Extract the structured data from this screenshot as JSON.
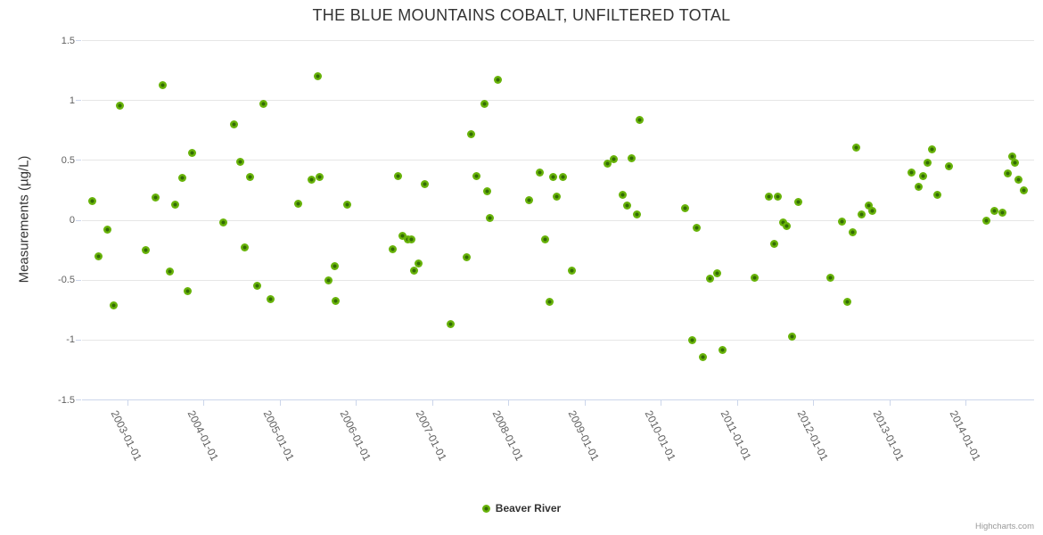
{
  "title": "THE BLUE MOUNTAINS COBALT, UNFILTERED TOTAL",
  "y_axis": {
    "title": "Measurements (µg/L)",
    "tick_labels": [
      "1.5",
      "1",
      "0.5",
      "0",
      "-0.5",
      "-1",
      "-1.5"
    ],
    "tick_values": [
      1.5,
      1,
      0.5,
      0,
      -0.5,
      -1,
      -1.5
    ]
  },
  "x_axis": {
    "tick_labels": [
      "2003-01-01",
      "2004-01-01",
      "2005-01-01",
      "2006-01-01",
      "2007-01-01",
      "2008-01-01",
      "2009-01-01",
      "2010-01-01",
      "2011-01-01",
      "2012-01-01",
      "2013-01-01",
      "2014-01-01"
    ],
    "tick_values": [
      2003,
      2004,
      2005,
      2006,
      2007,
      2008,
      2009,
      2010,
      2011,
      2012,
      2013,
      2014
    ]
  },
  "legend": {
    "series_label": "Beaver River"
  },
  "credits": {
    "label": "Highcharts.com"
  },
  "colors": {
    "point_outer": "#68b30a",
    "point_center": "#336b04",
    "grid": "#e6e6e6",
    "axis": "#ccd6eb",
    "label": "#606060",
    "title": "#333333"
  },
  "chart_data": {
    "type": "scatter",
    "title": "THE BLUE MOUNTAINS COBALT, UNFILTERED TOTAL",
    "xlabel": "",
    "ylabel": "Measurements (µg/L)",
    "xlim": [
      2002.4,
      2014.89
    ],
    "ylim": [
      -1.5,
      1.5
    ],
    "x_ticks": [
      2003,
      2004,
      2005,
      2006,
      2007,
      2008,
      2009,
      2010,
      2011,
      2012,
      2013,
      2014
    ],
    "x_tick_labels": [
      "2003-01-01",
      "2004-01-01",
      "2005-01-01",
      "2006-01-01",
      "2007-01-01",
      "2008-01-01",
      "2009-01-01",
      "2010-01-01",
      "2011-01-01",
      "2012-01-01",
      "2013-01-01",
      "2014-01-01"
    ],
    "y_ticks": [
      1.5,
      1,
      0.5,
      0,
      -0.5,
      -1,
      -1.5
    ],
    "grid": "horizontal",
    "legend_position": "bottom-center",
    "series": [
      {
        "name": "Beaver River",
        "color": "#68b30a",
        "data": [
          [
            2002.54,
            0.16
          ],
          [
            2002.62,
            -0.3
          ],
          [
            2002.73,
            -0.08
          ],
          [
            2002.82,
            -0.71
          ],
          [
            2002.9,
            0.96
          ],
          [
            2003.24,
            -0.25
          ],
          [
            2003.37,
            0.19
          ],
          [
            2003.46,
            1.13
          ],
          [
            2003.55,
            -0.43
          ],
          [
            2003.62,
            0.13
          ],
          [
            2003.72,
            0.35
          ],
          [
            2003.79,
            -0.59
          ],
          [
            2003.84,
            0.56
          ],
          [
            2004.25,
            -0.02
          ],
          [
            2004.39,
            0.8
          ],
          [
            2004.48,
            0.49
          ],
          [
            2004.54,
            -0.23
          ],
          [
            2004.61,
            0.36
          ],
          [
            2004.7,
            -0.55
          ],
          [
            2004.78,
            0.97
          ],
          [
            2004.87,
            -0.66
          ],
          [
            2005.24,
            0.14
          ],
          [
            2005.41,
            0.34
          ],
          [
            2005.49,
            1.2
          ],
          [
            2005.52,
            0.36
          ],
          [
            2005.63,
            -0.5
          ],
          [
            2005.72,
            -0.38
          ],
          [
            2005.73,
            -0.67
          ],
          [
            2005.88,
            0.13
          ],
          [
            2006.47,
            -0.24
          ],
          [
            2006.54,
            0.37
          ],
          [
            2006.6,
            -0.13
          ],
          [
            2006.67,
            -0.16
          ],
          [
            2006.72,
            -0.16
          ],
          [
            2006.76,
            -0.42
          ],
          [
            2006.82,
            -0.36
          ],
          [
            2006.9,
            0.3
          ],
          [
            2007.23,
            -0.87
          ],
          [
            2007.45,
            -0.31
          ],
          [
            2007.51,
            0.72
          ],
          [
            2007.57,
            0.37
          ],
          [
            2007.68,
            0.97
          ],
          [
            2007.71,
            0.24
          ],
          [
            2007.75,
            0.02
          ],
          [
            2007.86,
            1.17
          ],
          [
            2008.26,
            0.17
          ],
          [
            2008.4,
            0.4
          ],
          [
            2008.47,
            -0.16
          ],
          [
            2008.53,
            -0.68
          ],
          [
            2008.58,
            0.36
          ],
          [
            2008.63,
            0.2
          ],
          [
            2008.71,
            0.36
          ],
          [
            2008.83,
            -0.42
          ],
          [
            2009.29,
            0.47
          ],
          [
            2009.38,
            0.51
          ],
          [
            2009.49,
            0.21
          ],
          [
            2009.55,
            0.12
          ],
          [
            2009.61,
            0.52
          ],
          [
            2009.68,
            0.05
          ],
          [
            2009.71,
            0.84
          ],
          [
            2010.31,
            0.1
          ],
          [
            2010.41,
            -1.0
          ],
          [
            2010.46,
            -0.06
          ],
          [
            2010.55,
            -1.14
          ],
          [
            2010.64,
            -0.49
          ],
          [
            2010.73,
            -0.44
          ],
          [
            2010.8,
            -1.08
          ],
          [
            2011.22,
            -0.48
          ],
          [
            2011.41,
            0.2
          ],
          [
            2011.48,
            -0.2
          ],
          [
            2011.53,
            0.2
          ],
          [
            2011.6,
            -0.02
          ],
          [
            2011.65,
            -0.05
          ],
          [
            2011.72,
            -0.97
          ],
          [
            2011.8,
            0.15
          ],
          [
            2012.22,
            -0.48
          ],
          [
            2012.37,
            -0.01
          ],
          [
            2012.44,
            -0.68
          ],
          [
            2012.51,
            -0.1
          ],
          [
            2012.56,
            0.61
          ],
          [
            2012.63,
            0.05
          ],
          [
            2012.72,
            0.12
          ],
          [
            2012.77,
            0.08
          ],
          [
            2013.28,
            0.4
          ],
          [
            2013.37,
            0.28
          ],
          [
            2013.43,
            0.37
          ],
          [
            2013.49,
            0.48
          ],
          [
            2013.55,
            0.59
          ],
          [
            2013.62,
            0.21
          ],
          [
            2013.77,
            0.45
          ],
          [
            2014.27,
            0.0
          ],
          [
            2014.37,
            0.08
          ],
          [
            2014.48,
            0.06
          ],
          [
            2014.55,
            0.39
          ],
          [
            2014.6,
            0.53
          ],
          [
            2014.64,
            0.48
          ],
          [
            2014.69,
            0.34
          ],
          [
            2014.75,
            0.25
          ]
        ]
      }
    ]
  }
}
